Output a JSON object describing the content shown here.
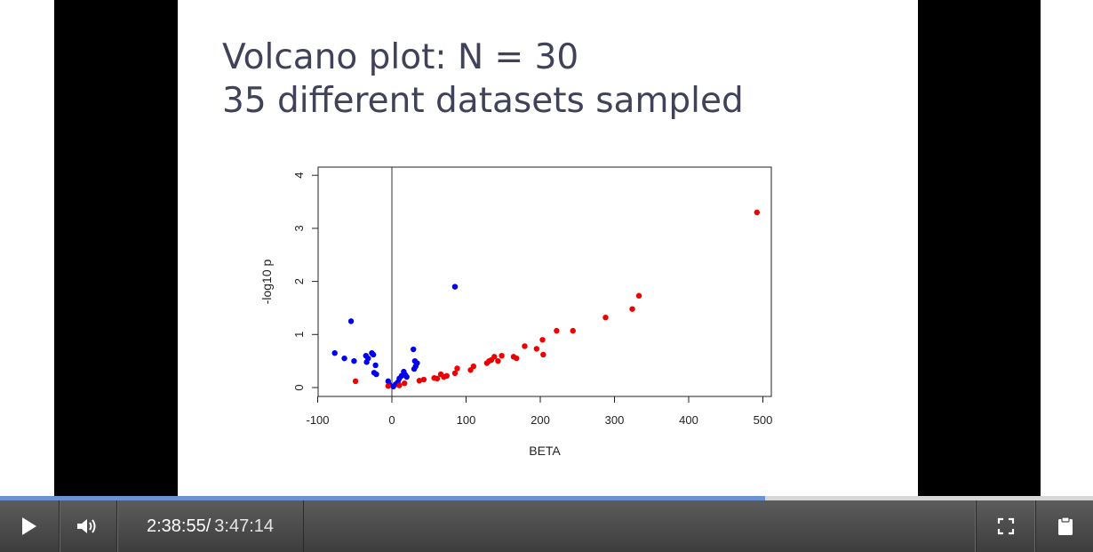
{
  "slide": {
    "title_line1": "Volcano plot: N = 30",
    "title_line2": "35 different datasets sampled"
  },
  "chart_data": {
    "type": "scatter",
    "xlabel": "BETA",
    "ylabel": "-log10 p",
    "xlim": [
      -100,
      500
    ],
    "ylim": [
      0,
      4
    ],
    "xticks": [
      "-100",
      "0",
      "100",
      "200",
      "300",
      "400",
      "500"
    ],
    "yticks": [
      "0",
      "1",
      "2",
      "3",
      "4"
    ],
    "vline_x": 0,
    "colors": {
      "blue": "#0000ee",
      "red": "#ee0000"
    },
    "series": [
      {
        "color": "#0000ee",
        "points": [
          [
            -77,
            0.65
          ],
          [
            -64,
            0.55
          ],
          [
            -55,
            1.25
          ],
          [
            -51,
            0.5
          ],
          [
            -35,
            0.6
          ],
          [
            -34,
            0.48
          ],
          [
            -32,
            0.55
          ],
          [
            -27,
            0.65
          ],
          [
            -25,
            0.62
          ],
          [
            -24,
            0.28
          ],
          [
            -22,
            0.42
          ],
          [
            -21,
            0.25
          ],
          [
            -5,
            0.12
          ],
          [
            -3,
            0.05
          ],
          [
            2,
            0.02
          ],
          [
            5,
            0.06
          ],
          [
            8,
            0.1
          ],
          [
            10,
            0.17
          ],
          [
            13,
            0.22
          ],
          [
            16,
            0.3
          ],
          [
            18,
            0.24
          ],
          [
            20,
            0.2
          ],
          [
            29,
            0.72
          ],
          [
            30,
            0.35
          ],
          [
            31,
            0.5
          ],
          [
            32,
            0.4
          ],
          [
            34,
            0.46
          ],
          [
            85,
            1.9
          ]
        ]
      },
      {
        "color": "#ee0000",
        "points": [
          [
            -49,
            0.12
          ],
          [
            -5,
            0.03
          ],
          [
            10,
            0.04
          ],
          [
            17,
            0.08
          ],
          [
            37,
            0.13
          ],
          [
            43,
            0.15
          ],
          [
            57,
            0.18
          ],
          [
            61,
            0.17
          ],
          [
            66,
            0.25
          ],
          [
            70,
            0.2
          ],
          [
            74,
            0.22
          ],
          [
            85,
            0.27
          ],
          [
            88,
            0.36
          ],
          [
            106,
            0.33
          ],
          [
            110,
            0.4
          ],
          [
            128,
            0.46
          ],
          [
            131,
            0.5
          ],
          [
            134,
            0.52
          ],
          [
            138,
            0.58
          ],
          [
            143,
            0.5
          ],
          [
            148,
            0.6
          ],
          [
            164,
            0.58
          ],
          [
            168,
            0.55
          ],
          [
            179,
            0.78
          ],
          [
            195,
            0.73
          ],
          [
            203,
            0.9
          ],
          [
            204,
            0.62
          ],
          [
            222,
            1.07
          ],
          [
            244,
            1.07
          ],
          [
            288,
            1.32
          ],
          [
            324,
            1.48
          ],
          [
            333,
            1.73
          ],
          [
            492,
            3.3
          ]
        ]
      }
    ]
  },
  "player": {
    "time_current": "2:38:55/",
    "time_total": "3:47:14",
    "progress_fraction": 0.7,
    "icons": {
      "play": "play-icon",
      "volume": "volume-icon",
      "fullscreen": "fullscreen-icon",
      "clipboard": "clipboard-icon"
    }
  }
}
